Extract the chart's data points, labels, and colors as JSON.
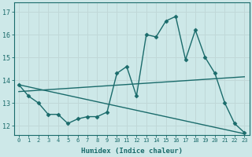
{
  "title": "",
  "xlabel": "Humidex (Indice chaleur)",
  "bg_color": "#cde8e8",
  "line_color": "#1a6b6b",
  "grid_color": "#c0d8d8",
  "xlim": [
    -0.5,
    23.5
  ],
  "ylim": [
    11.6,
    17.4
  ],
  "ytick_vals": [
    12,
    13,
    14,
    15,
    16,
    17
  ],
  "ytick_labels": [
    "12",
    "13",
    "14",
    "15",
    "16",
    "17"
  ],
  "xtick_vals": [
    0,
    1,
    2,
    3,
    4,
    5,
    6,
    7,
    8,
    9,
    10,
    11,
    12,
    13,
    14,
    15,
    16,
    17,
    18,
    19,
    20,
    21,
    22,
    23
  ],
  "xtick_labels": [
    "0",
    "1",
    "2",
    "3",
    "4",
    "5",
    "6",
    "7",
    "8",
    "9",
    "10",
    "11",
    "12",
    "13",
    "14",
    "15",
    "16",
    "17",
    "18",
    "19",
    "20",
    "21",
    "22",
    "23"
  ],
  "line1_x": [
    0,
    1,
    2,
    3,
    4,
    5,
    6,
    7,
    8,
    9,
    10,
    11,
    12,
    13,
    14,
    15,
    16,
    17,
    18,
    19,
    20,
    21,
    22,
    23
  ],
  "line1_y": [
    13.8,
    13.3,
    13.0,
    12.5,
    12.5,
    12.1,
    12.3,
    12.4,
    12.4,
    12.6,
    14.3,
    14.6,
    13.3,
    16.0,
    15.9,
    16.6,
    16.8,
    14.9,
    16.2,
    15.0,
    14.3,
    13.0,
    12.1,
    11.7
  ],
  "line2_x": [
    0,
    23
  ],
  "line2_y": [
    13.5,
    14.15
  ],
  "line3_x": [
    0,
    23
  ],
  "line3_y": [
    13.8,
    11.65
  ],
  "linewidth": 1.0,
  "markersize": 2.5
}
